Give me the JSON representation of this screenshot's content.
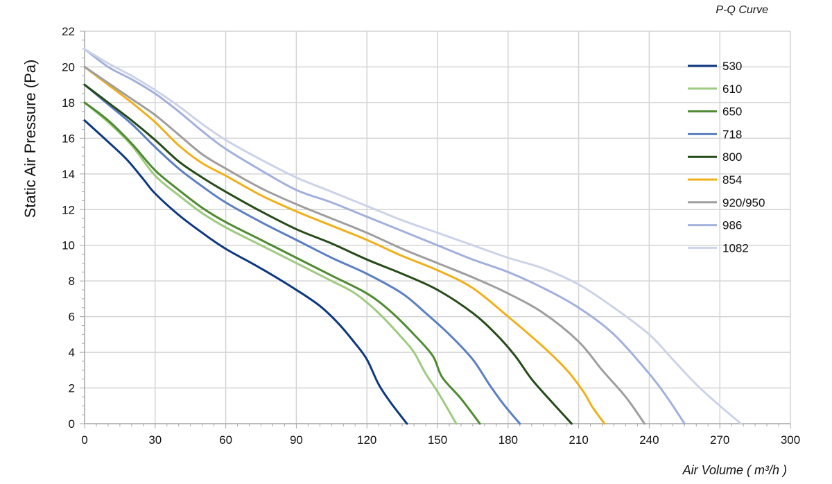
{
  "chart_data": {
    "type": "line",
    "title": "P-Q Curve",
    "xlabel": "Air Volume ( m³/h )",
    "ylabel": "Static Air Pressure  (Pa)",
    "xlim": [
      0,
      300
    ],
    "ylim": [
      0,
      22
    ],
    "xticks": [
      0,
      30,
      60,
      90,
      120,
      150,
      180,
      210,
      240,
      270,
      300
    ],
    "yticks": [
      0,
      2,
      4,
      6,
      8,
      10,
      12,
      14,
      16,
      18,
      20,
      22
    ],
    "grid": true,
    "legend_position": "top-right",
    "series": [
      {
        "name": "530",
        "color": "#0d3880",
        "points": [
          [
            0,
            17
          ],
          [
            10,
            15.8
          ],
          [
            18,
            14.8
          ],
          [
            25,
            13.7
          ],
          [
            30,
            12.9
          ],
          [
            40,
            11.7
          ],
          [
            50,
            10.7
          ],
          [
            60,
            9.8
          ],
          [
            75,
            8.7
          ],
          [
            90,
            7.5
          ],
          [
            100,
            6.6
          ],
          [
            108,
            5.6
          ],
          [
            115,
            4.5
          ],
          [
            120,
            3.6
          ],
          [
            125,
            2.2
          ],
          [
            130,
            1.2
          ],
          [
            137,
            0
          ]
        ]
      },
      {
        "name": "610",
        "color": "#9dcb7f",
        "points": [
          [
            0,
            18
          ],
          [
            10,
            16.9
          ],
          [
            20,
            15.6
          ],
          [
            30,
            13.9
          ],
          [
            40,
            12.8
          ],
          [
            50,
            11.8
          ],
          [
            60,
            11.0
          ],
          [
            75,
            10.0
          ],
          [
            90,
            9.0
          ],
          [
            105,
            8.0
          ],
          [
            115,
            7.3
          ],
          [
            125,
            6.2
          ],
          [
            135,
            4.8
          ],
          [
            140,
            4.0
          ],
          [
            145,
            2.8
          ],
          [
            150,
            1.8
          ],
          [
            158,
            0
          ]
        ]
      },
      {
        "name": "650",
        "color": "#4d8a31",
        "points": [
          [
            0,
            18
          ],
          [
            10,
            17.0
          ],
          [
            20,
            15.7
          ],
          [
            30,
            14.2
          ],
          [
            40,
            13.1
          ],
          [
            50,
            12.1
          ],
          [
            60,
            11.3
          ],
          [
            75,
            10.3
          ],
          [
            90,
            9.3
          ],
          [
            105,
            8.3
          ],
          [
            120,
            7.3
          ],
          [
            130,
            6.3
          ],
          [
            140,
            5.0
          ],
          [
            148,
            3.8
          ],
          [
            152,
            2.6
          ],
          [
            160,
            1.4
          ],
          [
            168,
            0
          ]
        ]
      },
      {
        "name": "718",
        "color": "#5b7fc1",
        "points": [
          [
            0,
            19
          ],
          [
            10,
            17.9
          ],
          [
            20,
            16.8
          ],
          [
            30,
            15.5
          ],
          [
            40,
            14.3
          ],
          [
            50,
            13.3
          ],
          [
            60,
            12.4
          ],
          [
            75,
            11.3
          ],
          [
            90,
            10.3
          ],
          [
            105,
            9.3
          ],
          [
            120,
            8.4
          ],
          [
            135,
            7.3
          ],
          [
            145,
            6.2
          ],
          [
            155,
            5.0
          ],
          [
            165,
            3.6
          ],
          [
            172,
            2.2
          ],
          [
            178,
            1.1
          ],
          [
            185,
            0
          ]
        ]
      },
      {
        "name": "800",
        "color": "#264b18",
        "points": [
          [
            0,
            19
          ],
          [
            10,
            18.0
          ],
          [
            20,
            17.0
          ],
          [
            30,
            15.9
          ],
          [
            40,
            14.7
          ],
          [
            50,
            13.8
          ],
          [
            60,
            13.0
          ],
          [
            75,
            11.9
          ],
          [
            90,
            10.9
          ],
          [
            105,
            10.1
          ],
          [
            120,
            9.2
          ],
          [
            135,
            8.4
          ],
          [
            150,
            7.5
          ],
          [
            165,
            6.2
          ],
          [
            175,
            5.0
          ],
          [
            183,
            3.8
          ],
          [
            190,
            2.5
          ],
          [
            198,
            1.3
          ],
          [
            207,
            0
          ]
        ]
      },
      {
        "name": "854",
        "color": "#f0b019",
        "points": [
          [
            0,
            20
          ],
          [
            10,
            19.0
          ],
          [
            20,
            18.0
          ],
          [
            30,
            16.9
          ],
          [
            40,
            15.6
          ],
          [
            50,
            14.6
          ],
          [
            60,
            13.9
          ],
          [
            75,
            12.8
          ],
          [
            90,
            11.9
          ],
          [
            105,
            11.1
          ],
          [
            120,
            10.3
          ],
          [
            135,
            9.4
          ],
          [
            150,
            8.6
          ],
          [
            165,
            7.6
          ],
          [
            180,
            6.0
          ],
          [
            195,
            4.3
          ],
          [
            205,
            3.0
          ],
          [
            212,
            1.8
          ],
          [
            216,
            0.9
          ],
          [
            221,
            0
          ]
        ]
      },
      {
        "name": "920/950",
        "color": "#9e9e9e",
        "points": [
          [
            0,
            20
          ],
          [
            10,
            19.1
          ],
          [
            20,
            18.2
          ],
          [
            30,
            17.3
          ],
          [
            40,
            16.2
          ],
          [
            50,
            15.1
          ],
          [
            60,
            14.3
          ],
          [
            75,
            13.2
          ],
          [
            90,
            12.3
          ],
          [
            105,
            11.5
          ],
          [
            120,
            10.7
          ],
          [
            135,
            9.8
          ],
          [
            150,
            9.0
          ],
          [
            165,
            8.2
          ],
          [
            180,
            7.3
          ],
          [
            195,
            6.2
          ],
          [
            210,
            4.6
          ],
          [
            220,
            3.0
          ],
          [
            230,
            1.5
          ],
          [
            238,
            0
          ]
        ]
      },
      {
        "name": "986",
        "color": "#a2b1dc",
        "points": [
          [
            0,
            21
          ],
          [
            10,
            20.0
          ],
          [
            20,
            19.3
          ],
          [
            30,
            18.5
          ],
          [
            40,
            17.5
          ],
          [
            50,
            16.4
          ],
          [
            60,
            15.4
          ],
          [
            75,
            14.2
          ],
          [
            90,
            13.1
          ],
          [
            105,
            12.4
          ],
          [
            120,
            11.6
          ],
          [
            135,
            10.8
          ],
          [
            150,
            10.0
          ],
          [
            165,
            9.2
          ],
          [
            180,
            8.5
          ],
          [
            195,
            7.6
          ],
          [
            210,
            6.5
          ],
          [
            225,
            5.0
          ],
          [
            240,
            2.8
          ],
          [
            248,
            1.4
          ],
          [
            255,
            0
          ]
        ]
      },
      {
        "name": "1082",
        "color": "#ccd3e8",
        "points": [
          [
            0,
            21
          ],
          [
            10,
            20.2
          ],
          [
            20,
            19.5
          ],
          [
            30,
            18.7
          ],
          [
            40,
            17.8
          ],
          [
            50,
            16.8
          ],
          [
            60,
            15.9
          ],
          [
            75,
            14.8
          ],
          [
            90,
            13.8
          ],
          [
            105,
            13.0
          ],
          [
            120,
            12.2
          ],
          [
            135,
            11.4
          ],
          [
            150,
            10.7
          ],
          [
            165,
            10.0
          ],
          [
            180,
            9.3
          ],
          [
            195,
            8.7
          ],
          [
            210,
            7.8
          ],
          [
            225,
            6.5
          ],
          [
            240,
            5.0
          ],
          [
            250,
            3.6
          ],
          [
            260,
            2.2
          ],
          [
            270,
            1.0
          ],
          [
            279,
            0
          ]
        ]
      }
    ]
  }
}
